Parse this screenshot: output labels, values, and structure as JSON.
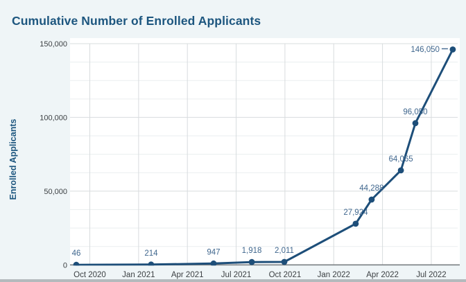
{
  "page": {
    "background_color": "#eff5f7",
    "bottom_bar_color": "#b4babd"
  },
  "chart_data": {
    "type": "line",
    "title": "Cumulative Number of Enrolled Applicants",
    "ylabel": "Enrolled Applicants",
    "xlabel": "",
    "ylim": [
      0,
      150000
    ],
    "y_minor_interval": 12500,
    "grid": true,
    "legend": false,
    "plot_background": "#ffffff",
    "y_ticks": [
      {
        "label": "0",
        "value": 0
      },
      {
        "label": "50,000",
        "value": 50000
      },
      {
        "label": "100,000",
        "value": 100000
      },
      {
        "label": "150,000",
        "value": 150000
      }
    ],
    "x_ticks": [
      {
        "label": "Oct 2020",
        "month": 1
      },
      {
        "label": "Jan 2021",
        "month": 4
      },
      {
        "label": "Apr 2021",
        "month": 7
      },
      {
        "label": "Jul 2021",
        "month": 10
      },
      {
        "label": "Oct 2021",
        "month": 13
      },
      {
        "label": "Jan 2022",
        "month": 16
      },
      {
        "label": "Apr 2022",
        "month": 19
      },
      {
        "label": "Jul 2022",
        "month": 22
      }
    ],
    "xlim_months": [
      -0.17,
      23.62
    ],
    "series": [
      {
        "name": "Enrolled Applicants",
        "color": "#1d4e79",
        "points": [
          {
            "approx_date": "Sep 2020",
            "month": 0.17,
            "value": 46,
            "label": "46",
            "label_placement": "above"
          },
          {
            "approx_date": "Jan 2021",
            "month": 4.77,
            "value": 214,
            "label": "214",
            "label_placement": "above"
          },
          {
            "approx_date": "May 2021",
            "month": 8.61,
            "value": 947,
            "label": "947",
            "label_placement": "above"
          },
          {
            "approx_date": "Aug 2021",
            "month": 10.96,
            "value": 1918,
            "label": "1,918",
            "label_placement": "above"
          },
          {
            "approx_date": "Oct 2021",
            "month": 12.96,
            "value": 2011,
            "label": "2,011",
            "label_placement": "above"
          },
          {
            "approx_date": "Feb 2022",
            "month": 17.35,
            "value": 27924,
            "label": "27,924",
            "label_placement": "above"
          },
          {
            "approx_date": "Mar 2022",
            "month": 18.33,
            "value": 44288,
            "label": "44,288",
            "label_placement": "above"
          },
          {
            "approx_date": "May 2022",
            "month": 20.13,
            "value": 64065,
            "label": "64,065",
            "label_placement": "above"
          },
          {
            "approx_date": "Jun 2022",
            "month": 21.02,
            "value": 96050,
            "label": "96,050",
            "label_placement": "above"
          },
          {
            "approx_date": "Aug 2022",
            "month": 23.32,
            "value": 146050,
            "label": "146,050",
            "label_placement": "left"
          }
        ]
      }
    ],
    "colors": {
      "title": "#1d567f",
      "axis_title": "#1d567f",
      "line": "#1d4e79",
      "point": "#1d4e79",
      "data_label": "#40678e",
      "tick_label": "#3c4043",
      "grid_major": "#d8dcde",
      "grid_minor": "#eaeeef",
      "axis_line": "#7a7f83"
    }
  }
}
